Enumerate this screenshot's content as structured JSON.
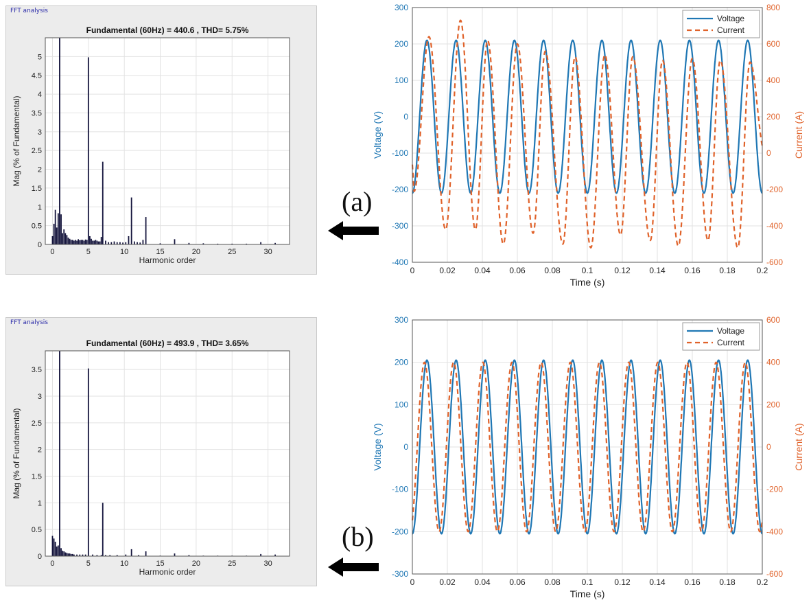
{
  "labels": {
    "a": "(a)",
    "b": "(b)"
  },
  "colors": {
    "voltage": "#1f77b4",
    "current": "#e0622a",
    "bar": "#14143c",
    "grid": "#e2e2e2"
  },
  "fft_panels": [
    {
      "window_title": "FFT analysis"
    },
    {
      "window_title": "FFT analysis"
    }
  ],
  "chart_data": [
    {
      "type": "bar",
      "title": "Fundamental (60Hz) = 440.6 , THD= 5.75%",
      "xlabel": "Harmonic order",
      "ylabel": "Mag (% of Fundamental)",
      "xlim": [
        -1,
        33
      ],
      "ylim": [
        0,
        5.5
      ],
      "xticks": [
        0,
        5,
        10,
        15,
        20,
        25,
        30
      ],
      "yticks": [
        0,
        0.5,
        1,
        1.5,
        2,
        2.5,
        3,
        3.5,
        4,
        4.5,
        5
      ],
      "grid": true,
      "x": [
        0,
        0.2,
        0.4,
        0.6,
        0.8,
        1,
        1.2,
        1.4,
        1.6,
        1.8,
        2,
        2.2,
        2.4,
        2.6,
        2.8,
        3,
        3.2,
        3.4,
        3.6,
        3.8,
        4,
        4.2,
        4.4,
        4.6,
        4.8,
        5,
        5.2,
        5.4,
        5.6,
        5.8,
        6,
        6.2,
        6.4,
        6.6,
        6.8,
        7,
        7.4,
        7.8,
        8.2,
        8.6,
        9,
        9.4,
        9.8,
        10.2,
        10.6,
        11,
        11.4,
        11.8,
        12.2,
        12.6,
        13,
        15,
        17,
        19,
        21,
        23,
        25,
        27,
        29,
        31
      ],
      "values": [
        0.22,
        0.55,
        0.92,
        0.45,
        0.83,
        5.5,
        0.8,
        0.3,
        0.4,
        0.3,
        0.25,
        0.18,
        0.15,
        0.12,
        0.12,
        0.1,
        0.12,
        0.1,
        0.14,
        0.11,
        0.12,
        0.12,
        0.1,
        0.13,
        0.12,
        4.98,
        0.22,
        0.15,
        0.1,
        0.1,
        0.12,
        0.1,
        0.08,
        0.08,
        0.2,
        2.2,
        0.1,
        0.06,
        0.06,
        0.08,
        0.06,
        0.06,
        0.05,
        0.06,
        0.22,
        1.25,
        0.08,
        0.06,
        0.05,
        0.12,
        0.73,
        0.03,
        0.14,
        0.04,
        0.03,
        0.02,
        0.02,
        0.02,
        0.06,
        0.04
      ]
    },
    {
      "type": "line",
      "xlabel": "Time (s)",
      "ylabel": "Voltage (V)",
      "y2label": "Current (A)",
      "xlim": [
        0,
        0.2
      ],
      "ylim": [
        -400,
        300
      ],
      "y2lim": [
        -600,
        800
      ],
      "xticks": [
        0,
        0.02,
        0.04,
        0.06,
        0.08,
        0.1,
        0.12,
        0.14,
        0.16,
        0.18,
        0.2
      ],
      "yticks": [
        -400,
        -300,
        -200,
        -100,
        0,
        100,
        200,
        300
      ],
      "y2ticks": [
        -600,
        -400,
        -200,
        0,
        200,
        400,
        600,
        800
      ],
      "grid": true,
      "legend": "top-right",
      "series": [
        {
          "name": "Voltage",
          "axis": "left",
          "style": "solid",
          "amplitude": 210,
          "frequency_hz": 60,
          "phase_deg": -90
        },
        {
          "name": "Current",
          "axis": "right",
          "style": "dashed",
          "frequency_hz": 60,
          "peaks": [
            [
              0.0095,
              640
            ],
            [
              0.0275,
              730
            ],
            [
              0.043,
              620
            ],
            [
              0.06,
              600
            ],
            [
              0.076,
              560
            ],
            [
              0.093,
              530
            ],
            [
              0.11,
              540
            ],
            [
              0.126,
              530
            ],
            [
              0.143,
              510
            ],
            [
              0.16,
              520
            ],
            [
              0.176,
              510
            ],
            [
              0.193,
              500
            ]
          ],
          "troughs": [
            [
              0.001,
              -210
            ],
            [
              0.019,
              -420
            ],
            [
              0.036,
              -420
            ],
            [
              0.052,
              -500
            ],
            [
              0.069,
              -440
            ],
            [
              0.086,
              -500
            ],
            [
              0.102,
              -520
            ],
            [
              0.119,
              -450
            ],
            [
              0.136,
              -480
            ],
            [
              0.152,
              -510
            ],
            [
              0.169,
              -480
            ],
            [
              0.186,
              -520
            ]
          ]
        }
      ]
    },
    {
      "type": "bar",
      "title": "Fundamental (60Hz) = 493.9 , THD= 3.65%",
      "xlabel": "Harmonic order",
      "ylabel": "Mag (% of Fundamental)",
      "xlim": [
        -1,
        33
      ],
      "ylim": [
        0,
        3.85
      ],
      "xticks": [
        0,
        5,
        10,
        15,
        20,
        25,
        30
      ],
      "yticks": [
        0,
        0.5,
        1,
        1.5,
        2,
        2.5,
        3,
        3.5
      ],
      "grid": true,
      "x": [
        0,
        0.2,
        0.4,
        0.6,
        0.8,
        1,
        1.2,
        1.4,
        1.6,
        1.8,
        2,
        2.2,
        2.4,
        2.6,
        2.8,
        3,
        3.4,
        3.8,
        4.2,
        4.6,
        5,
        5.6,
        6.2,
        6.8,
        7,
        7.4,
        8,
        9,
        10.2,
        11,
        12,
        13,
        15,
        17,
        19,
        21,
        23,
        25,
        27,
        29,
        31
      ],
      "values": [
        0.38,
        0.33,
        0.27,
        0.18,
        0.2,
        3.85,
        0.15,
        0.1,
        0.09,
        0.07,
        0.06,
        0.05,
        0.05,
        0.04,
        0.04,
        0.03,
        0.03,
        0.03,
        0.03,
        0.03,
        3.52,
        0.03,
        0.02,
        0.02,
        1.0,
        0.02,
        0.02,
        0.02,
        0.03,
        0.13,
        0.02,
        0.09,
        0.01,
        0.05,
        0.02,
        0.01,
        0.01,
        0.01,
        0.01,
        0.04,
        0.03
      ]
    },
    {
      "type": "line",
      "xlabel": "Time (s)",
      "ylabel": "Voltage (V)",
      "y2label": "Current (A)",
      "xlim": [
        0,
        0.2
      ],
      "ylim": [
        -300,
        300
      ],
      "y2lim": [
        -600,
        600
      ],
      "xticks": [
        0,
        0.02,
        0.04,
        0.06,
        0.08,
        0.1,
        0.12,
        0.14,
        0.16,
        0.18,
        0.2
      ],
      "yticks": [
        -300,
        -200,
        -100,
        0,
        100,
        200,
        300
      ],
      "y2ticks": [
        -600,
        -400,
        -200,
        0,
        200,
        400,
        600
      ],
      "grid": true,
      "legend": "top-right",
      "series": [
        {
          "name": "Voltage",
          "axis": "left",
          "style": "solid",
          "amplitude": 205,
          "frequency_hz": 60,
          "phase_deg": -90
        },
        {
          "name": "Current",
          "axis": "right",
          "style": "dashed",
          "amplitude": 400,
          "frequency_hz": 60,
          "phase_deg": -60
        }
      ]
    }
  ]
}
